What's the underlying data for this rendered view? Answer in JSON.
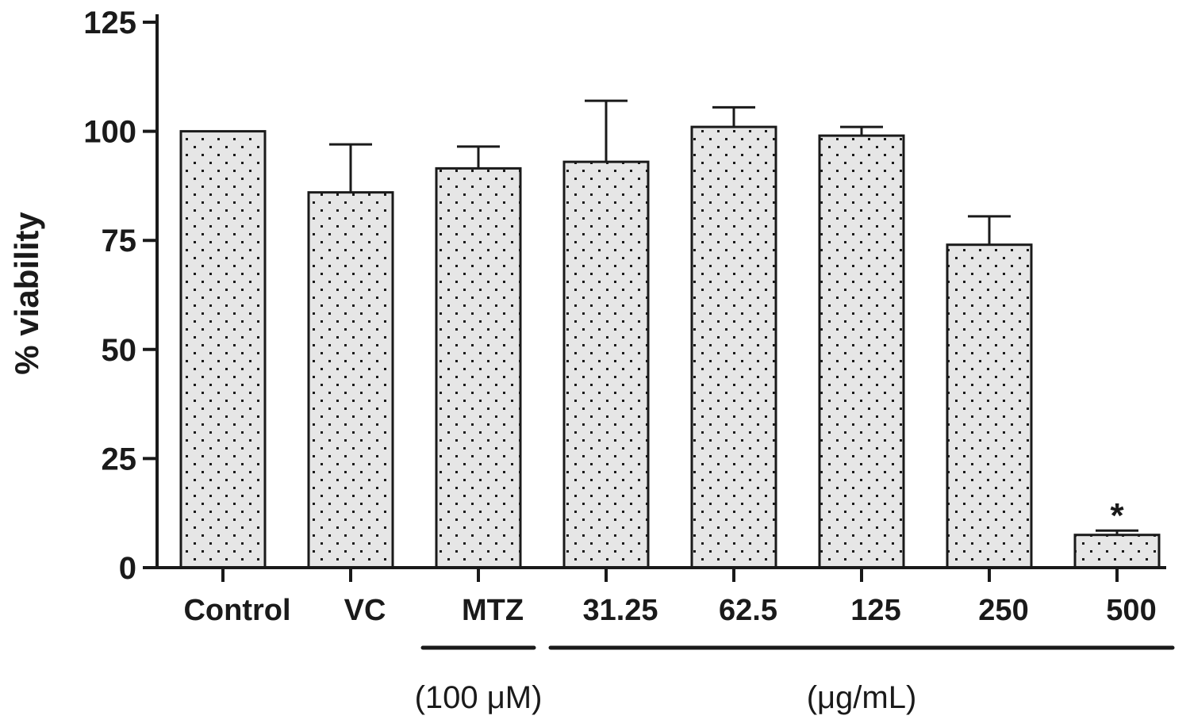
{
  "chart_data": {
    "type": "bar",
    "ylabel": "% viability",
    "xlabel": "",
    "ylim": [
      0,
      125
    ],
    "yticks": [
      0,
      25,
      50,
      75,
      100,
      125
    ],
    "categories": [
      "Control",
      "VC",
      "MTZ",
      "31.25",
      "62.5",
      "125",
      "250",
      "500"
    ],
    "values": [
      100,
      86,
      91.5,
      93,
      101,
      99,
      74,
      7.5
    ],
    "errors": [
      0,
      11,
      5,
      14,
      4.5,
      2,
      6.5,
      1
    ],
    "annotations": [
      {
        "category": "500",
        "text": "*"
      }
    ],
    "groups": [
      {
        "label": "(100 μM)",
        "categories": [
          "MTZ"
        ]
      },
      {
        "label": "(μg/mL)",
        "categories": [
          "31.25",
          "62.5",
          "125",
          "250",
          "500"
        ]
      }
    ],
    "bar_fill": "#e6e6e6",
    "bar_pattern": "dotted",
    "grid": false,
    "legend": "none"
  }
}
